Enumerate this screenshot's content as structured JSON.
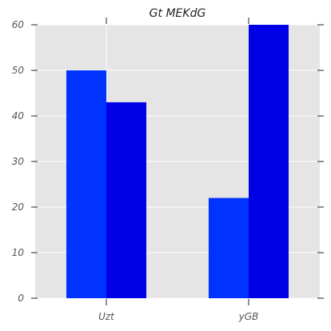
{
  "chart_data": {
    "type": "bar",
    "title": "Gt MEKdG",
    "xlabel": "",
    "ylabel": "",
    "categories": [
      "Uzt",
      "yGB"
    ],
    "series": [
      {
        "color": "#0033ff",
        "values": [
          50,
          22
        ]
      },
      {
        "color": "#0000e6",
        "values": [
          43,
          60
        ]
      }
    ],
    "ylim": [
      0,
      60
    ],
    "yticks": [
      0,
      10,
      20,
      30,
      40,
      50,
      60
    ],
    "grid": true,
    "legend": "none",
    "style": {
      "background": "#e5e5e5",
      "grid_color": "#ffffff"
    }
  }
}
